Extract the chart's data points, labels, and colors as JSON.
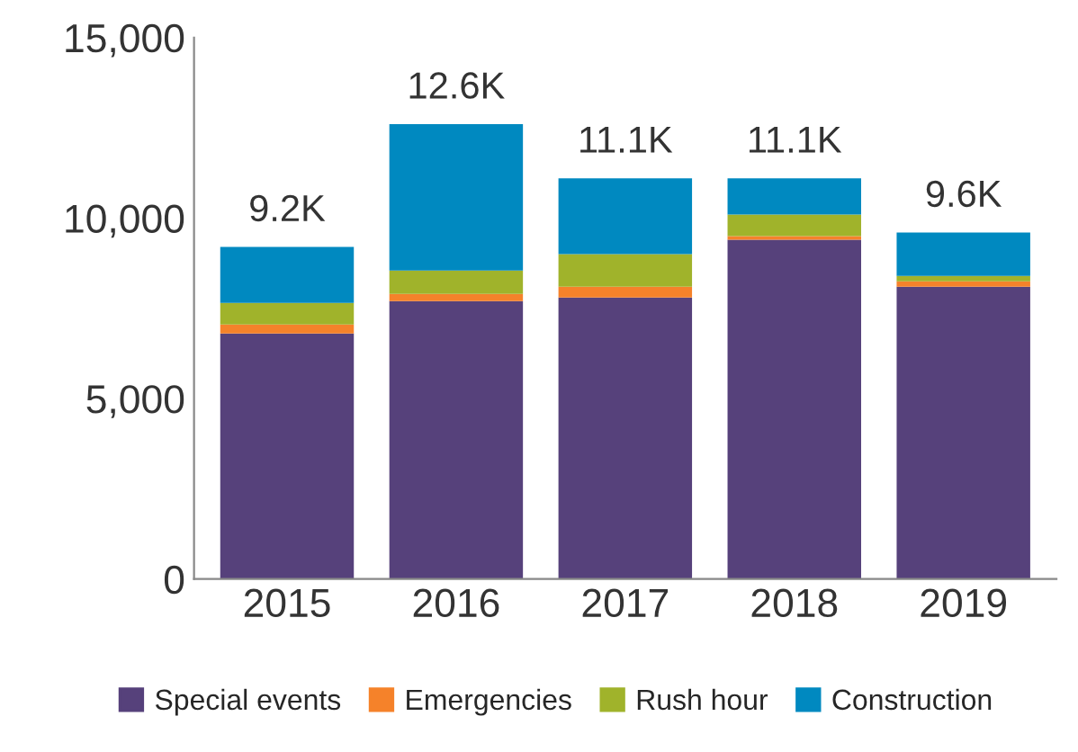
{
  "chart_data": {
    "type": "bar",
    "stacked": true,
    "categories": [
      "2015",
      "2016",
      "2017",
      "2018",
      "2019"
    ],
    "series": [
      {
        "name": "Special events",
        "color": "#56417b",
        "values": [
          6800,
          7700,
          7800,
          9400,
          8100
        ]
      },
      {
        "name": "Emergencies",
        "color": "#f5822a",
        "values": [
          250,
          200,
          300,
          100,
          150
        ]
      },
      {
        "name": "Rush hour",
        "color": "#a0b32b",
        "values": [
          600,
          650,
          900,
          600,
          150
        ]
      },
      {
        "name": "Construction",
        "color": "#0089c0",
        "values": [
          1550,
          4050,
          2100,
          1000,
          1200
        ]
      }
    ],
    "totals": [
      "9.2K",
      "12.6K",
      "11.1K",
      "11.1K",
      "9.6K"
    ],
    "ylim": [
      0,
      15000
    ],
    "yticks": [
      {
        "value": 0,
        "label": "0"
      },
      {
        "value": 5000,
        "label": "5,000"
      },
      {
        "value": 10000,
        "label": "10,000"
      },
      {
        "value": 15000,
        "label": "15,000"
      }
    ],
    "grid": false,
    "legend": "bottom"
  }
}
